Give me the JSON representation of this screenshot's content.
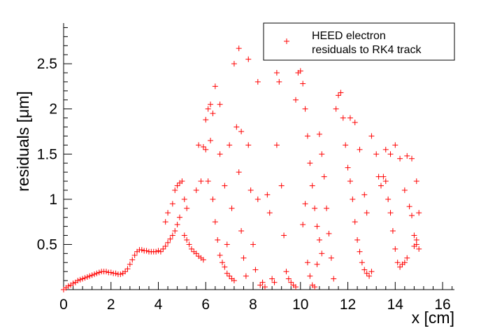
{
  "chart_data": {
    "type": "scatter",
    "title": "",
    "xlabel": "x [cm]",
    "ylabel": "residuals [μm]",
    "xlim": [
      0,
      16.5
    ],
    "ylim": [
      0,
      2.95
    ],
    "x_ticks": [
      0,
      2,
      4,
      6,
      8,
      10,
      12,
      14,
      16
    ],
    "x_tick_labels": [
      "0",
      "2",
      "4",
      "6",
      "8",
      "10",
      "12",
      "14",
      "16"
    ],
    "y_ticks": [
      0.5,
      1,
      1.5,
      2,
      2.5
    ],
    "y_tick_labels": [
      "0.5",
      "1",
      "1.5",
      "2",
      "2.5"
    ],
    "grid": false,
    "legend": {
      "placement": "top-right",
      "entries": [
        "HEED electron",
        "residuals to RK4 track"
      ]
    },
    "series": [
      {
        "name": "HEED electron residuals to RK4 track",
        "color": "#ff0000",
        "marker": "plus",
        "points": [
          [
            0.0,
            0.0
          ],
          [
            0.1,
            0.02
          ],
          [
            0.2,
            0.04
          ],
          [
            0.3,
            0.05
          ],
          [
            0.4,
            0.07
          ],
          [
            0.5,
            0.08
          ],
          [
            0.6,
            0.1
          ],
          [
            0.7,
            0.11
          ],
          [
            0.8,
            0.12
          ],
          [
            0.9,
            0.13
          ],
          [
            1.0,
            0.14
          ],
          [
            1.1,
            0.15
          ],
          [
            1.2,
            0.16
          ],
          [
            1.3,
            0.17
          ],
          [
            1.4,
            0.18
          ],
          [
            1.5,
            0.19
          ],
          [
            1.6,
            0.2
          ],
          [
            1.7,
            0.2
          ],
          [
            1.8,
            0.2
          ],
          [
            1.9,
            0.19
          ],
          [
            2.0,
            0.19
          ],
          [
            2.1,
            0.18
          ],
          [
            2.2,
            0.18
          ],
          [
            2.3,
            0.17
          ],
          [
            2.4,
            0.17
          ],
          [
            2.5,
            0.18
          ],
          [
            2.6,
            0.2
          ],
          [
            2.7,
            0.23
          ],
          [
            2.8,
            0.28
          ],
          [
            2.9,
            0.33
          ],
          [
            3.0,
            0.38
          ],
          [
            3.1,
            0.42
          ],
          [
            3.2,
            0.44
          ],
          [
            3.3,
            0.44
          ],
          [
            3.4,
            0.43
          ],
          [
            3.5,
            0.43
          ],
          [
            3.6,
            0.42
          ],
          [
            3.7,
            0.42
          ],
          [
            3.8,
            0.42
          ],
          [
            3.9,
            0.42
          ],
          [
            4.0,
            0.43
          ],
          [
            4.1,
            0.42
          ],
          [
            4.2,
            0.45
          ],
          [
            4.3,
            0.48
          ],
          [
            4.4,
            0.52
          ],
          [
            4.5,
            0.56
          ],
          [
            4.6,
            0.6
          ],
          [
            4.7,
            0.65
          ],
          [
            4.8,
            0.72
          ],
          [
            4.9,
            0.8
          ],
          [
            4.3,
            0.75
          ],
          [
            4.4,
            0.85
          ],
          [
            4.6,
            0.95
          ],
          [
            4.7,
            1.1
          ],
          [
            4.8,
            1.15
          ],
          [
            4.9,
            1.18
          ],
          [
            5.0,
            1.2
          ],
          [
            5.1,
            1.0
          ],
          [
            5.2,
            0.9
          ],
          [
            5.1,
            0.6
          ],
          [
            5.2,
            0.55
          ],
          [
            5.3,
            0.5
          ],
          [
            5.4,
            0.45
          ],
          [
            5.5,
            0.42
          ],
          [
            5.6,
            0.4
          ],
          [
            5.7,
            0.37
          ],
          [
            5.8,
            0.35
          ],
          [
            5.9,
            0.33
          ],
          [
            5.6,
            1.1
          ],
          [
            5.8,
            1.2
          ],
          [
            5.7,
            1.6
          ],
          [
            5.9,
            1.58
          ],
          [
            6.0,
            1.55
          ],
          [
            6.0,
            1.88
          ],
          [
            6.1,
            2.0
          ],
          [
            6.2,
            2.05
          ],
          [
            6.3,
            1.95
          ],
          [
            6.4,
            2.25
          ],
          [
            6.2,
            1.65
          ],
          [
            6.1,
            1.2
          ],
          [
            6.3,
            1.0
          ],
          [
            6.4,
            0.75
          ],
          [
            6.5,
            0.55
          ],
          [
            6.6,
            0.38
          ],
          [
            6.7,
            0.3
          ],
          [
            6.8,
            0.25
          ],
          [
            6.9,
            0.18
          ],
          [
            7.0,
            0.15
          ],
          [
            7.1,
            0.12
          ],
          [
            7.2,
            0.1
          ],
          [
            6.6,
            2.05
          ],
          [
            6.6,
            1.5
          ],
          [
            6.8,
            1.15
          ],
          [
            6.9,
            0.5
          ],
          [
            7.0,
            1.6
          ],
          [
            7.1,
            0.9
          ],
          [
            7.2,
            2.5
          ],
          [
            7.3,
            1.8
          ],
          [
            7.4,
            2.67
          ],
          [
            7.5,
            1.75
          ],
          [
            7.4,
            1.3
          ],
          [
            7.5,
            0.65
          ],
          [
            7.6,
            0.35
          ],
          [
            7.7,
            0.15
          ],
          [
            7.8,
            2.55
          ],
          [
            7.8,
            1.6
          ],
          [
            7.9,
            1.1
          ],
          [
            8.0,
            0.5
          ],
          [
            8.1,
            0.22
          ],
          [
            8.2,
            2.3
          ],
          [
            8.2,
            1.0
          ],
          [
            8.3,
            0.05
          ],
          [
            8.4,
            0.08
          ],
          [
            8.5,
            0.03
          ],
          [
            8.6,
            1.05
          ],
          [
            8.7,
            0.85
          ],
          [
            8.8,
            0.12
          ],
          [
            8.9,
            0.08
          ],
          [
            9.0,
            2.4
          ],
          [
            9.1,
            2.3
          ],
          [
            9.0,
            1.6
          ],
          [
            9.2,
            1.15
          ],
          [
            9.3,
            0.6
          ],
          [
            9.4,
            0.2
          ],
          [
            9.5,
            0.12
          ],
          [
            9.6,
            0.08
          ],
          [
            9.7,
            0.05
          ],
          [
            9.8,
            0.03
          ],
          [
            9.8,
            2.1
          ],
          [
            9.9,
            2.4
          ],
          [
            10.0,
            2.42
          ],
          [
            10.1,
            2.28
          ],
          [
            10.2,
            2.0
          ],
          [
            10.3,
            1.7
          ],
          [
            10.4,
            1.4
          ],
          [
            10.5,
            1.15
          ],
          [
            10.6,
            0.9
          ],
          [
            10.7,
            0.7
          ],
          [
            10.8,
            0.55
          ],
          [
            10.9,
            0.4
          ],
          [
            10.1,
            0.72
          ],
          [
            10.2,
            0.95
          ],
          [
            10.3,
            0.3
          ],
          [
            10.4,
            0.15
          ],
          [
            10.5,
            0.05
          ],
          [
            10.6,
            0.03
          ],
          [
            10.7,
            0.28
          ],
          [
            10.8,
            1.72
          ],
          [
            10.9,
            1.5
          ],
          [
            11.0,
            1.25
          ],
          [
            11.1,
            0.9
          ],
          [
            11.2,
            0.62
          ],
          [
            11.3,
            0.35
          ],
          [
            11.4,
            0.12
          ],
          [
            11.5,
            2.0
          ],
          [
            11.6,
            2.15
          ],
          [
            11.7,
            2.18
          ],
          [
            11.8,
            1.9
          ],
          [
            11.9,
            1.6
          ],
          [
            12.0,
            1.35
          ],
          [
            12.1,
            1.2
          ],
          [
            12.2,
            1.0
          ],
          [
            12.3,
            0.75
          ],
          [
            12.4,
            0.55
          ],
          [
            12.5,
            0.42
          ],
          [
            12.6,
            0.3
          ],
          [
            12.7,
            0.22
          ],
          [
            12.8,
            0.18
          ],
          [
            12.9,
            0.15
          ],
          [
            13.0,
            0.2
          ],
          [
            12.1,
            1.9
          ],
          [
            12.3,
            1.85
          ],
          [
            12.5,
            1.55
          ],
          [
            12.7,
            1.05
          ],
          [
            12.8,
            0.85
          ],
          [
            13.0,
            1.7
          ],
          [
            13.2,
            1.5
          ],
          [
            13.3,
            1.25
          ],
          [
            13.4,
            1.15
          ],
          [
            13.5,
            1.25
          ],
          [
            13.6,
            1.2
          ],
          [
            13.7,
            1.0
          ],
          [
            13.8,
            0.85
          ],
          [
            13.9,
            0.65
          ],
          [
            14.0,
            0.45
          ],
          [
            14.1,
            0.3
          ],
          [
            14.2,
            0.25
          ],
          [
            14.3,
            0.28
          ],
          [
            14.4,
            0.3
          ],
          [
            14.5,
            0.35
          ],
          [
            13.6,
            1.55
          ],
          [
            13.8,
            1.5
          ],
          [
            14.0,
            1.6
          ],
          [
            14.2,
            1.45
          ],
          [
            14.4,
            1.1
          ],
          [
            14.6,
            0.92
          ],
          [
            14.7,
            0.82
          ],
          [
            14.8,
            0.6
          ],
          [
            14.9,
            0.5
          ],
          [
            15.0,
            0.45
          ],
          [
            14.5,
            1.48
          ],
          [
            14.7,
            1.45
          ],
          [
            14.9,
            1.2
          ],
          [
            15.0,
            0.85
          ],
          [
            14.8,
            0.48
          ],
          [
            14.9,
            0.55
          ]
        ]
      }
    ]
  }
}
